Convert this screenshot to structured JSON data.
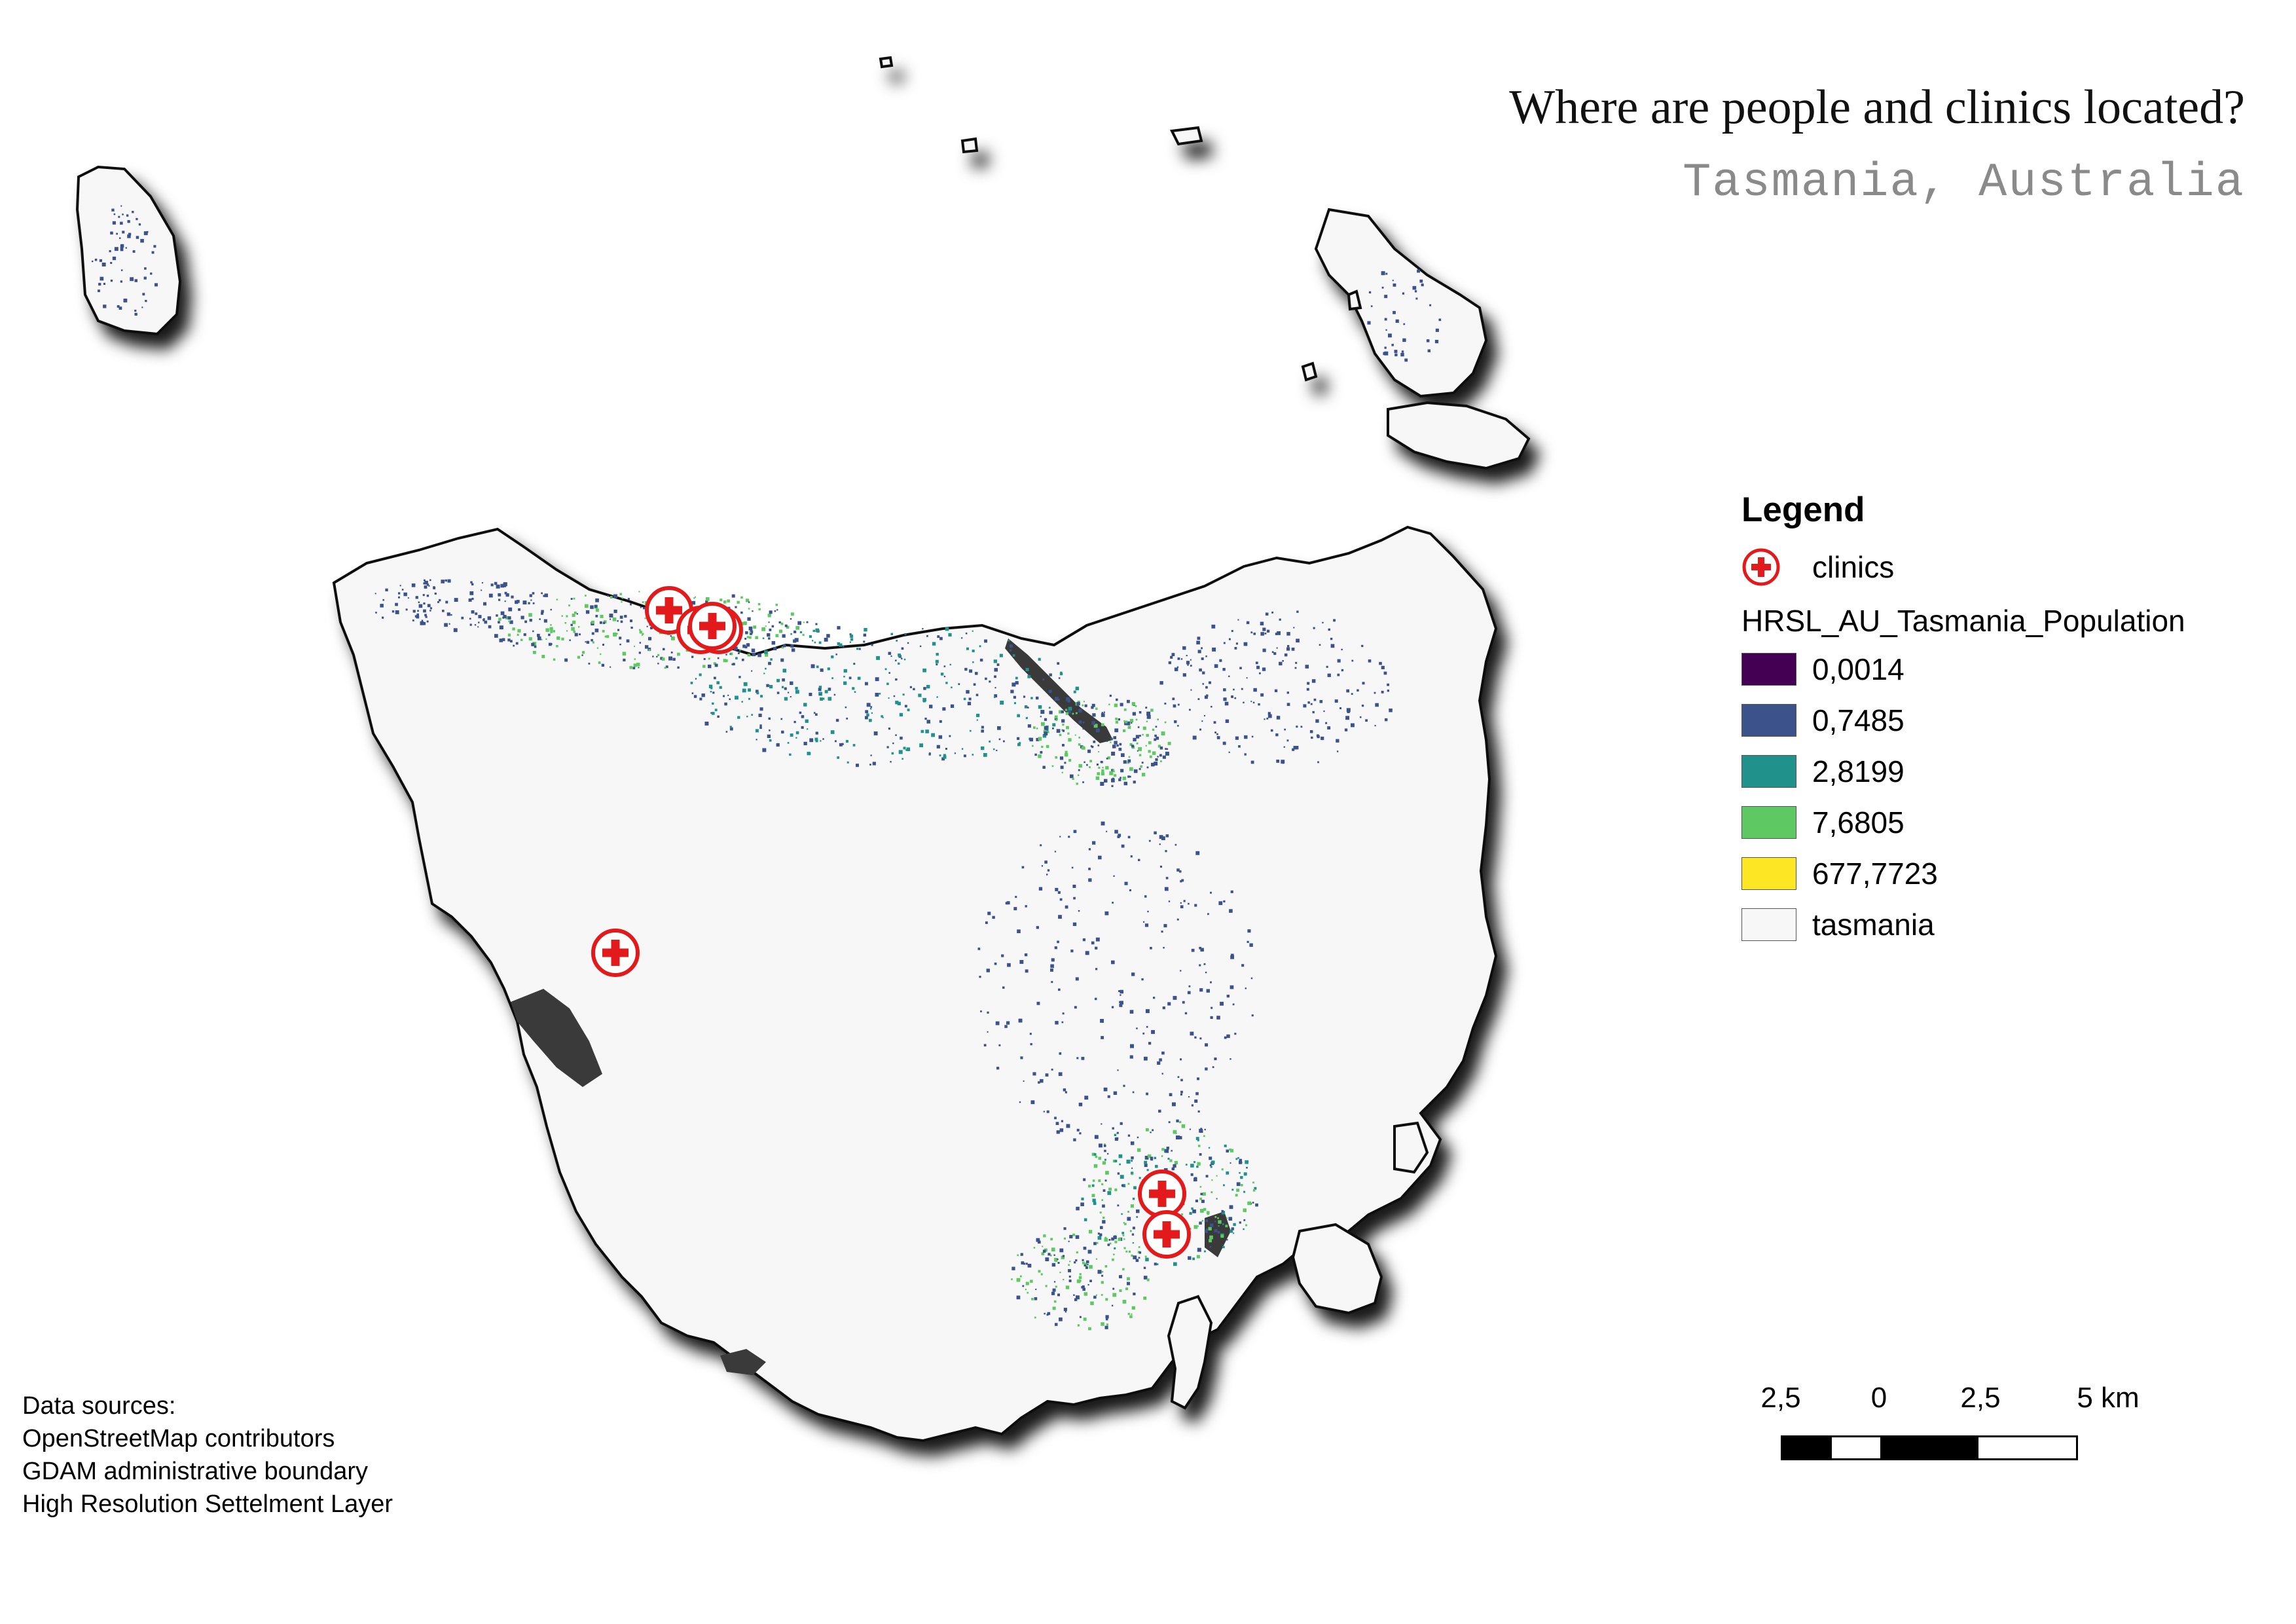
{
  "title": "Where are people and clinics located?",
  "subtitle": "Tasmania, Australia",
  "legend": {
    "heading": "Legend",
    "clinics_label": "clinics",
    "population_layer": "HRSL_AU_Tasmania_Population",
    "classes": [
      {
        "label": "0,0014",
        "color": "#440154"
      },
      {
        "label": "0,7485",
        "color": "#3b528b"
      },
      {
        "label": "2,8199",
        "color": "#21918c"
      },
      {
        "label": "7,6805",
        "color": "#5ec962"
      },
      {
        "label": "677,7723",
        "color": "#fde725"
      }
    ],
    "land_label": "tasmania",
    "land_color": "#f7f7f7"
  },
  "scale_bar": {
    "labels": [
      "2,5",
      "0",
      "2,5",
      "5 km"
    ]
  },
  "data_sources": {
    "heading": "Data sources:",
    "items": [
      "OpenStreetMap contributors",
      "GDAM administrative boundary",
      "High Resolution Settelment Layer"
    ]
  },
  "clinic_color": "#e31a1c"
}
